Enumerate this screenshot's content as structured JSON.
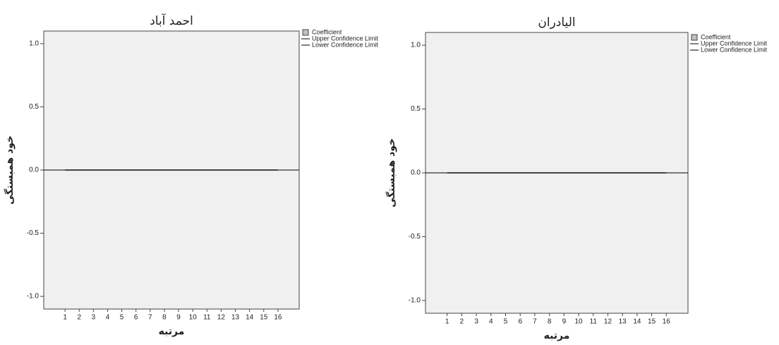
{
  "chart_data": [
    {
      "type": "bar",
      "title": "احمد آباد",
      "x_label": "مرتبه",
      "y_label": "خود همبستگی",
      "categories": [
        "1",
        "2",
        "3",
        "4",
        "5",
        "6",
        "7",
        "8",
        "9",
        "10",
        "11",
        "12",
        "13",
        "14",
        "15",
        "16"
      ],
      "series": [
        {
          "name": "Coefficient",
          "color": "#c0c0c0",
          "values": [
            0,
            0,
            0,
            0,
            0,
            0,
            0,
            0,
            0,
            0,
            0,
            0,
            0,
            0,
            0,
            0
          ]
        },
        {
          "name": "Upper Confidence Limit",
          "color": "#000000",
          "values": [
            0,
            0,
            0,
            0,
            0,
            0,
            0,
            0,
            0,
            0,
            0,
            0,
            0,
            0,
            0,
            0
          ]
        },
        {
          "name": "Lower Confidence Limit",
          "color": "#000000",
          "values": [
            0,
            0,
            0,
            0,
            0,
            0,
            0,
            0,
            0,
            0,
            0,
            0,
            0,
            0,
            0,
            0
          ]
        }
      ],
      "ylim": [
        -1.1,
        1.1
      ],
      "yticks": [
        {
          "value": -1,
          "label": "-1.0"
        },
        -0.5,
        {
          "value": 0,
          "label": "0.0"
        },
        0.5,
        {
          "value": 1,
          "label": "1.0"
        }
      ]
    },
    {
      "type": "bar",
      "title": "الیادران",
      "x_label": "مرتبه",
      "y_label": "خود همبستگی",
      "categories": [
        "1",
        "2",
        "3",
        "4",
        "5",
        "6",
        "7",
        "8",
        "9",
        "10",
        "11",
        "12",
        "13",
        "14",
        "15",
        "16"
      ],
      "series": [
        {
          "name": "Coefficient",
          "color": "#c0c0c0",
          "values": [
            0,
            0,
            0,
            0,
            0,
            0,
            0,
            0,
            0,
            0,
            0,
            0,
            0,
            0,
            0,
            0
          ]
        },
        {
          "name": "Upper Confidence Limit",
          "color": "#000000",
          "values": [
            0,
            0,
            0,
            0,
            0,
            0,
            0,
            0,
            0,
            0,
            0,
            0,
            0,
            0,
            0,
            0
          ]
        },
        {
          "name": "Lower Confidence Limit",
          "color": "#000000",
          "values": [
            0,
            0,
            0,
            0,
            0,
            0,
            0,
            0,
            0,
            0,
            0,
            0,
            0,
            0,
            0,
            0
          ]
        }
      ],
      "ylim": [
        -1.1,
        1.1
      ],
      "yticks": [
        {
          "value": -1,
          "label": "-1.0"
        },
        -0.5,
        {
          "value": 0,
          "label": "0.0"
        },
        0.5,
        {
          "value": 1,
          "label": "1.0"
        }
      ]
    }
  ]
}
